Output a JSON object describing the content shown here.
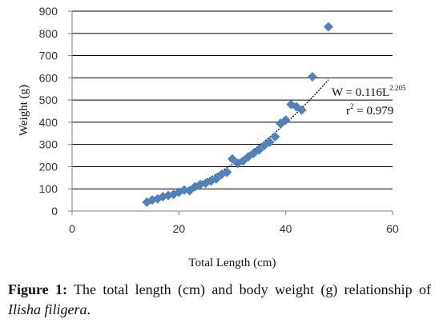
{
  "chart_data": {
    "type": "scatter",
    "title": "",
    "xlabel": "Total Length (cm)",
    "ylabel": "Weight (g)",
    "xlim": [
      0,
      60
    ],
    "ylim": [
      0,
      900
    ],
    "x_ticks": [
      "0",
      "20",
      "40",
      "60"
    ],
    "y_ticks": [
      "0",
      "100",
      "200",
      "300",
      "400",
      "500",
      "600",
      "700",
      "800",
      "900"
    ],
    "grid": "horizontal",
    "legend": "none",
    "marker": "diamond",
    "marker_color": "#4f81bd",
    "trendline_color": "#000000",
    "points": [
      {
        "x": 14,
        "y": 40
      },
      {
        "x": 15,
        "y": 50
      },
      {
        "x": 16,
        "y": 55
      },
      {
        "x": 17,
        "y": 65
      },
      {
        "x": 18,
        "y": 70
      },
      {
        "x": 19,
        "y": 75
      },
      {
        "x": 20,
        "y": 85
      },
      {
        "x": 21,
        "y": 95
      },
      {
        "x": 22,
        "y": 92
      },
      {
        "x": 23,
        "y": 110
      },
      {
        "x": 24,
        "y": 120
      },
      {
        "x": 25,
        "y": 125
      },
      {
        "x": 26,
        "y": 135
      },
      {
        "x": 27,
        "y": 145
      },
      {
        "x": 28,
        "y": 165
      },
      {
        "x": 29,
        "y": 175
      },
      {
        "x": 30,
        "y": 235
      },
      {
        "x": 31,
        "y": 215
      },
      {
        "x": 32,
        "y": 225
      },
      {
        "x": 33,
        "y": 245
      },
      {
        "x": 34,
        "y": 260
      },
      {
        "x": 35,
        "y": 275
      },
      {
        "x": 36,
        "y": 295
      },
      {
        "x": 37,
        "y": 310
      },
      {
        "x": 38,
        "y": 335
      },
      {
        "x": 39,
        "y": 395
      },
      {
        "x": 40,
        "y": 410
      },
      {
        "x": 41,
        "y": 480
      },
      {
        "x": 42,
        "y": 470
      },
      {
        "x": 43,
        "y": 455
      },
      {
        "x": 45,
        "y": 605
      },
      {
        "x": 48,
        "y": 830
      }
    ],
    "trendline": {
      "a": 0.116,
      "b": 2.205,
      "x_range": [
        14,
        48
      ],
      "equation_prefix": "W = 0.116L",
      "equation_exponent": "2.205",
      "r2_prefix": "r",
      "r2_exponent": "2",
      "r2_suffix": " = 0.979"
    }
  },
  "caption": {
    "label": "Figure 1:",
    "text": " The total length (cm) and body weight (g) relationship of ",
    "species": "Ilisha filigera",
    "end": "."
  }
}
